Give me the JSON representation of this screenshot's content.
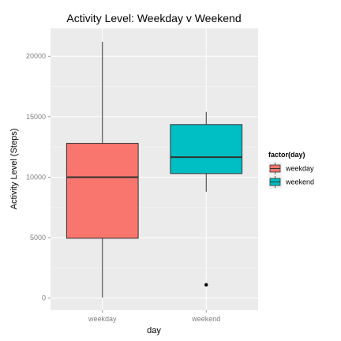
{
  "chart_data": {
    "type": "boxplot",
    "title": "Activity Level: Weekday v Weekend",
    "xlabel": "day",
    "ylabel": "Activity Level (Steps)",
    "categories": [
      "weekday",
      "weekend"
    ],
    "yticks": [
      0,
      5000,
      10000,
      15000,
      20000
    ],
    "ylim": [
      -1000,
      22300
    ],
    "grid": true,
    "legend": {
      "title": "factor(day)",
      "position": "right",
      "entries": [
        "weekday",
        "weekend"
      ]
    },
    "boxes": [
      {
        "category": "weekday",
        "min": 41,
        "q1": 4950,
        "median": 10000,
        "q3": 12800,
        "max": 21200,
        "outliers": [],
        "color": "#F8766D"
      },
      {
        "category": "weekend",
        "min": 8800,
        "q1": 10300,
        "median": 11650,
        "q3": 14350,
        "max": 15400,
        "outliers": [
          1100
        ],
        "color": "#00BFC4"
      }
    ],
    "colors": {
      "panel": "#EBEBEB",
      "grid_major": "#ffffff",
      "grid_minor": "#F5F5F5"
    }
  }
}
